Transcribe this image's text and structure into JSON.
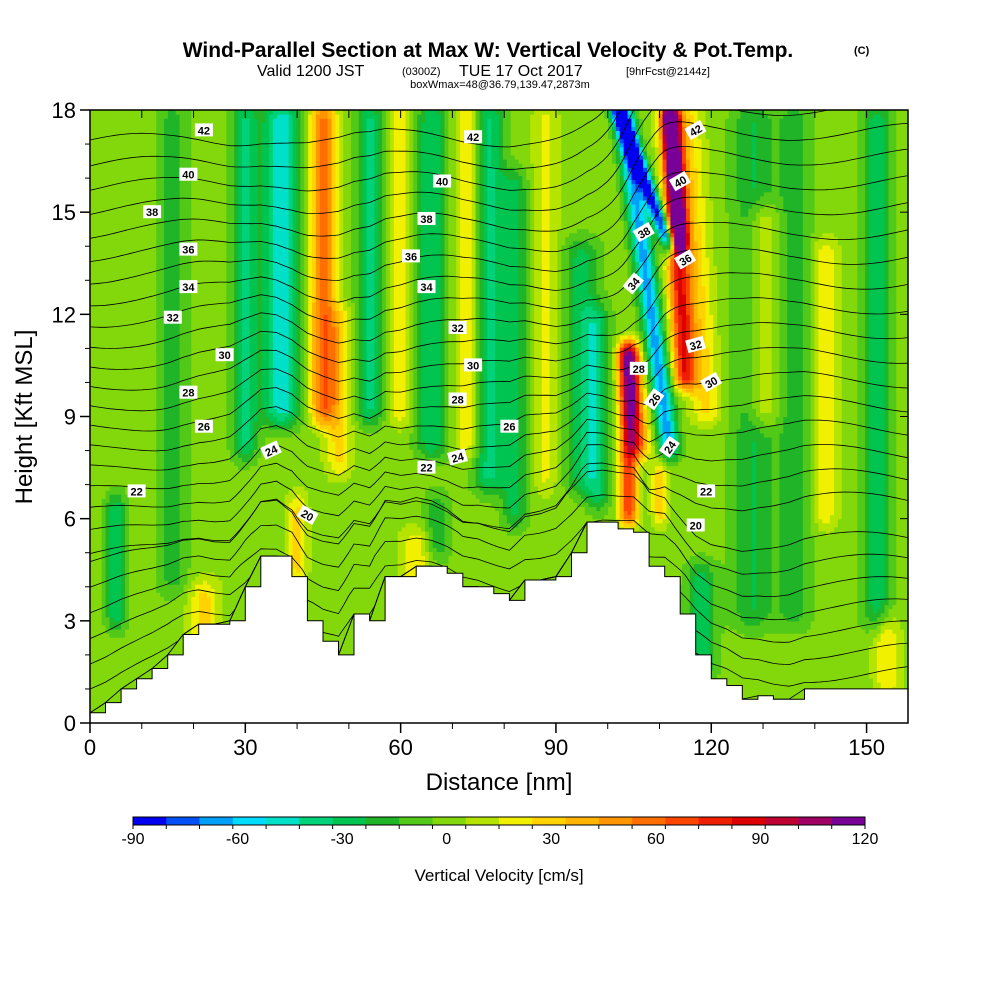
{
  "header": {
    "title": "Wind-Parallel Section at Max W: Vertical Velocity & Pot.Temp.",
    "title_mark": "(C)",
    "valid_pre": "Valid 1200 JST",
    "valid_utc": "(0300Z)",
    "valid_date": "TUE 17 Oct 2017",
    "valid_fcst": "[9hrFcst@2144z]",
    "boxinfo": "boxWmax=48@36.79,139.47,2873m"
  },
  "chart_data": {
    "type": "heatmap",
    "title": "Wind-Parallel Section at Max W: Vertical Velocity & Pot.Temp.",
    "xlabel": "Distance [nm]",
    "ylabel": "Height [Kft MSL]",
    "xlim": [
      0,
      158
    ],
    "ylim": [
      0,
      18
    ],
    "x_ticks": [
      "0",
      "30",
      "60",
      "90",
      "120",
      "150"
    ],
    "y_ticks": [
      "0",
      "3",
      "6",
      "9",
      "12",
      "15",
      "18"
    ],
    "background_w": 5,
    "vertical_velocity_features": [
      {
        "x": 5,
        "z0": 3.0,
        "z1": 6.5,
        "w": -35,
        "halfwidth": 2.0
      },
      {
        "x": 16,
        "z0": 4.0,
        "z1": 18.0,
        "w": -20,
        "halfwidth": 3.0
      },
      {
        "x": 22,
        "z0": 1.8,
        "z1": 4.0,
        "w": 28,
        "halfwidth": 3.0
      },
      {
        "x": 30,
        "z0": 8.0,
        "z1": 18.0,
        "w": -38,
        "halfwidth": 2.5
      },
      {
        "x": 37,
        "z0": 9.0,
        "z1": 18.0,
        "w": -55,
        "halfwidth": 3.5
      },
      {
        "x": 45,
        "z0": 9.0,
        "z1": 18.0,
        "w": 60,
        "halfwidth": 2.5
      },
      {
        "x": 48,
        "z0": 7.5,
        "z1": 12.0,
        "w": 28,
        "halfwidth": 2.5
      },
      {
        "x": 54,
        "z0": 9.0,
        "z1": 18.0,
        "w": -38,
        "halfwidth": 2.5
      },
      {
        "x": 60,
        "z0": 9.0,
        "z1": 18.0,
        "w": 25,
        "halfwidth": 2.0
      },
      {
        "x": 66,
        "z0": 8.0,
        "z1": 18.0,
        "w": -35,
        "halfwidth": 3.0
      },
      {
        "x": 73,
        "z0": 8.0,
        "z1": 18.0,
        "w": 28,
        "halfwidth": 2.5
      },
      {
        "x": 77,
        "z0": 7.0,
        "z1": 18.0,
        "w": -38,
        "halfwidth": 3.0
      },
      {
        "x": 82,
        "z0": 6.0,
        "z1": 16.0,
        "w": -30,
        "halfwidth": 2.5
      },
      {
        "x": 88,
        "z0": 7.0,
        "z1": 18.0,
        "w": 18,
        "halfwidth": 2.5
      },
      {
        "x": 95,
        "z0": 7.0,
        "z1": 14.0,
        "w": -30,
        "halfwidth": 3.5
      },
      {
        "x": 98,
        "z0": 6.5,
        "z1": 12.0,
        "w": -30,
        "halfwidth": 2.5
      },
      {
        "x": 40,
        "z0": 4.3,
        "z1": 6.5,
        "w": 28,
        "halfwidth": 2.0
      },
      {
        "x": 63,
        "z0": 4.3,
        "z1": 5.5,
        "w": 25,
        "halfwidth": 3.0
      },
      {
        "x": 67,
        "z0": 5.0,
        "z1": 6.5,
        "w": -25,
        "halfwidth": 2.5
      },
      {
        "x": 118,
        "z0": 1.5,
        "z1": 4.5,
        "w": -30,
        "halfwidth": 3.0
      },
      {
        "x": 128,
        "z0": 3.0,
        "z1": 18.0,
        "w": -25,
        "halfwidth": 4.0
      },
      {
        "x": 136,
        "z0": 3.0,
        "z1": 18.0,
        "w": -20,
        "halfwidth": 3.5
      },
      {
        "x": 142,
        "z0": 6.0,
        "z1": 14.0,
        "w": 25,
        "halfwidth": 2.5
      },
      {
        "x": 152,
        "z0": 3.0,
        "z1": 18.0,
        "w": -30,
        "halfwidth": 3.0
      },
      {
        "x": 130,
        "z0": 9.0,
        "z1": 15.0,
        "w": 30,
        "halfwidth": 3.0
      },
      {
        "x": 154,
        "z0": 1.0,
        "z1": 3.0,
        "w": 25,
        "halfwidth": 2.5
      }
    ],
    "tilted_features": [
      {
        "x_bottom": 104,
        "x_top": 104,
        "z0": 6.0,
        "z1": 11.0,
        "w": 75,
        "halfwidth": 1.8
      },
      {
        "x_bottom": 106,
        "x_top": 104,
        "z0": 8.0,
        "z1": 11.0,
        "w": 60,
        "halfwidth": 2.2
      },
      {
        "x_bottom": 112,
        "x_top": 103,
        "z0": 8.0,
        "z1": 18.0,
        "w": -70,
        "halfwidth": 2.0
      },
      {
        "x_bottom": 112,
        "x_top": 102,
        "z0": 14.0,
        "z1": 18.0,
        "w": -95,
        "halfwidth": 1.5
      },
      {
        "x_bottom": 115,
        "x_top": 112,
        "z0": 10.0,
        "z1": 18.0,
        "w": 80,
        "halfwidth": 2.2
      },
      {
        "x_bottom": 114,
        "x_top": 112,
        "z0": 14.0,
        "z1": 18.0,
        "w": 100,
        "halfwidth": 1.5
      },
      {
        "x_bottom": 119,
        "x_top": 115,
        "z0": 9.0,
        "z1": 18.0,
        "w": 28,
        "halfwidth": 3.0
      },
      {
        "x_bottom": 110,
        "x_top": 110,
        "z0": 6.0,
        "z1": 7.5,
        "w": 32,
        "halfwidth": 1.5
      }
    ],
    "terrain_height_kft": {
      "x": [
        0,
        3,
        6,
        9,
        12,
        15,
        18,
        21,
        24,
        27,
        30,
        33,
        36,
        39,
        42,
        45,
        48,
        51,
        54,
        57,
        60,
        63,
        66,
        69,
        72,
        75,
        78,
        81,
        84,
        87,
        90,
        93,
        96,
        99,
        102,
        105,
        108,
        111,
        114,
        117,
        120,
        123,
        126,
        129,
        132,
        135,
        138,
        141,
        144,
        147,
        150,
        153,
        156,
        158
      ],
      "z": [
        0.3,
        0.6,
        1.0,
        1.3,
        1.6,
        2.0,
        2.6,
        2.9,
        2.9,
        3.0,
        4.0,
        4.9,
        4.9,
        4.3,
        3.0,
        2.4,
        2.0,
        3.2,
        3.0,
        4.3,
        4.3,
        4.6,
        4.6,
        4.4,
        4.0,
        4.0,
        3.8,
        3.6,
        4.2,
        4.2,
        4.3,
        5.0,
        5.9,
        5.9,
        5.7,
        5.6,
        4.6,
        4.3,
        3.2,
        2.0,
        1.3,
        1.1,
        0.7,
        0.8,
        0.7,
        0.7,
        1.0,
        1.0,
        1.0,
        1.0,
        1.0,
        1.0,
        1.0,
        1.0
      ]
    },
    "potential_temperature_contour_levels_C": [
      16,
      17,
      18,
      19,
      20,
      21,
      22,
      23,
      24,
      25,
      26,
      27,
      28,
      29,
      30,
      31,
      32,
      33,
      34,
      35,
      36,
      37,
      38,
      39,
      40,
      41,
      42,
      43
    ],
    "contour_labels": [
      {
        "text": "42",
        "x": 22,
        "z": 17.4,
        "angle": 0
      },
      {
        "text": "40",
        "x": 19,
        "z": 16.1,
        "angle": 0
      },
      {
        "text": "38",
        "x": 12,
        "z": 15.0,
        "angle": 0
      },
      {
        "text": "36",
        "x": 19,
        "z": 13.9,
        "angle": 0
      },
      {
        "text": "34",
        "x": 19,
        "z": 12.8,
        "angle": 0
      },
      {
        "text": "32",
        "x": 16,
        "z": 11.9,
        "angle": 0
      },
      {
        "text": "30",
        "x": 26,
        "z": 10.8,
        "angle": 0
      },
      {
        "text": "28",
        "x": 19,
        "z": 9.7,
        "angle": 0
      },
      {
        "text": "26",
        "x": 22,
        "z": 8.7,
        "angle": 0
      },
      {
        "text": "24",
        "x": 35,
        "z": 8.0,
        "angle": -25
      },
      {
        "text": "22",
        "x": 9,
        "z": 6.8,
        "angle": 0
      },
      {
        "text": "20",
        "x": 42,
        "z": 6.1,
        "angle": 30
      },
      {
        "text": "42",
        "x": 74,
        "z": 17.2,
        "angle": 0
      },
      {
        "text": "40",
        "x": 68,
        "z": 15.9,
        "angle": 0
      },
      {
        "text": "38",
        "x": 65,
        "z": 14.8,
        "angle": 0
      },
      {
        "text": "36",
        "x": 62,
        "z": 13.7,
        "angle": 0
      },
      {
        "text": "34",
        "x": 65,
        "z": 12.8,
        "angle": 0
      },
      {
        "text": "32",
        "x": 71,
        "z": 11.6,
        "angle": 0
      },
      {
        "text": "30",
        "x": 74,
        "z": 10.5,
        "angle": 0
      },
      {
        "text": "28",
        "x": 71,
        "z": 9.5,
        "angle": 0
      },
      {
        "text": "26",
        "x": 81,
        "z": 8.7,
        "angle": 0
      },
      {
        "text": "24",
        "x": 71,
        "z": 7.8,
        "angle": -15
      },
      {
        "text": "22",
        "x": 65,
        "z": 7.5,
        "angle": 0
      },
      {
        "text": "42",
        "x": 117,
        "z": 17.4,
        "angle": -30
      },
      {
        "text": "40",
        "x": 114,
        "z": 15.9,
        "angle": -30
      },
      {
        "text": "38",
        "x": 107,
        "z": 14.4,
        "angle": -30
      },
      {
        "text": "36",
        "x": 115,
        "z": 13.6,
        "angle": -30
      },
      {
        "text": "34",
        "x": 105,
        "z": 12.9,
        "angle": -50
      },
      {
        "text": "32",
        "x": 117,
        "z": 11.1,
        "angle": -15
      },
      {
        "text": "30",
        "x": 120,
        "z": 10.0,
        "angle": -30
      },
      {
        "text": "28",
        "x": 106,
        "z": 10.4,
        "angle": 0
      },
      {
        "text": "26",
        "x": 109,
        "z": 9.5,
        "angle": -55
      },
      {
        "text": "24",
        "x": 112,
        "z": 8.1,
        "angle": -55
      },
      {
        "text": "22",
        "x": 119,
        "z": 6.8,
        "angle": 0
      },
      {
        "text": "20",
        "x": 117,
        "z": 5.8,
        "angle": 0
      }
    ]
  },
  "colorbar": {
    "label": "Vertical Velocity [cm/s]",
    "min": -90,
    "max": 120,
    "step": 10,
    "tick_labels": [
      "-90",
      "-60",
      "-30",
      "0",
      "30",
      "60",
      "90",
      "120"
    ],
    "colors": [
      "#0000f0",
      "#0050f5",
      "#00a0f8",
      "#00dcff",
      "#00e0c8",
      "#00d27a",
      "#00c450",
      "#20b428",
      "#52c818",
      "#82d80a",
      "#b4e400",
      "#f0f000",
      "#ffd200",
      "#ffb400",
      "#ff9600",
      "#ff6e00",
      "#ff4600",
      "#f01e00",
      "#dc0000",
      "#be0032",
      "#a00064",
      "#780096"
    ]
  }
}
